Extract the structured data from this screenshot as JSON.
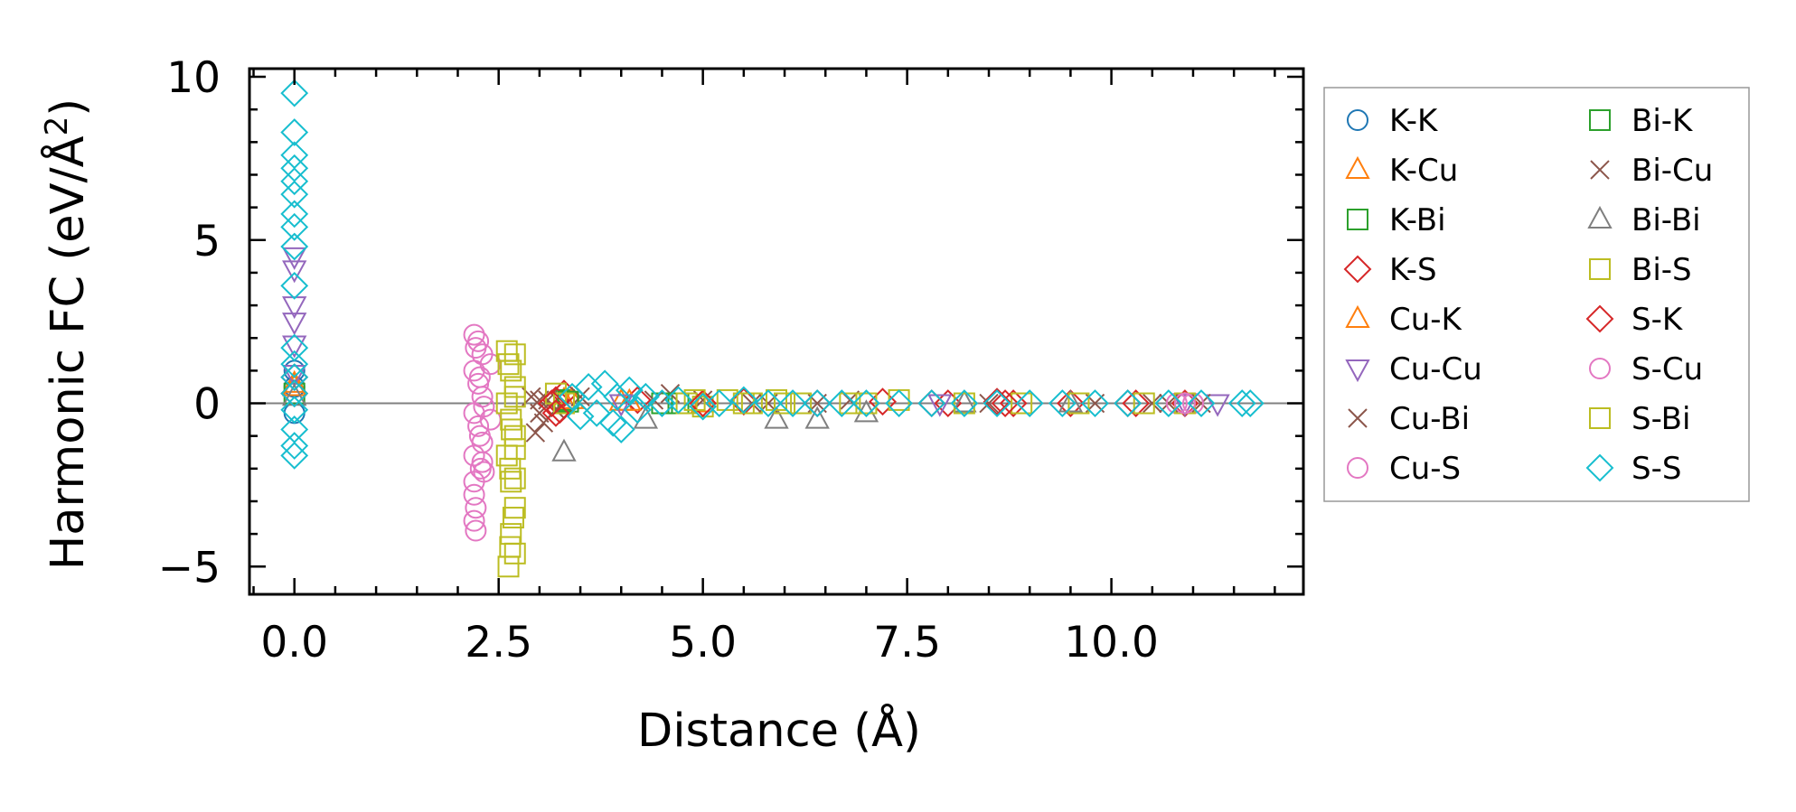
{
  "chart_data": {
    "type": "scatter",
    "title": "",
    "xlabel": "Distance (Å)",
    "ylabel_main": "Harmonic FC (eV/Å",
    "ylabel_sup": "2",
    "ylabel_tail": ")",
    "xlim": [
      -0.55,
      12.35
    ],
    "ylim": [
      -5.85,
      10.25
    ],
    "x_ticks": [
      0.0,
      2.5,
      5.0,
      7.5,
      10.0
    ],
    "x_tick_labels": [
      "0.0",
      "2.5",
      "5.0",
      "7.5",
      "10.0"
    ],
    "y_ticks": [
      -5,
      0,
      5,
      10
    ],
    "y_tick_labels": [
      "−5",
      "0",
      "5",
      "10"
    ],
    "zero_line": 0,
    "legend_position": "outside-right",
    "series": [
      {
        "name": "K-K",
        "marker": "circle",
        "color": "#1f77b4",
        "points": [
          [
            0.0,
            1.0
          ],
          [
            0.0,
            0.5
          ],
          [
            0.0,
            -0.3
          ]
        ]
      },
      {
        "name": "K-Cu",
        "marker": "triangle-up",
        "color": "#ff7f0e",
        "points": [
          [
            0.0,
            0.6
          ],
          [
            3.3,
            0.1
          ],
          [
            4.0,
            0.05
          ],
          [
            5.0,
            0.0
          ]
        ]
      },
      {
        "name": "K-Bi",
        "marker": "square",
        "color": "#2ca02c",
        "points": [
          [
            0.0,
            0.3
          ],
          [
            3.3,
            0.1
          ],
          [
            4.5,
            0.0
          ]
        ]
      },
      {
        "name": "K-S",
        "marker": "diamond",
        "color": "#d62728",
        "points": [
          [
            0.0,
            0.8
          ],
          [
            3.2,
            0.1
          ],
          [
            3.25,
            -0.2
          ],
          [
            3.3,
            0.3
          ],
          [
            4.2,
            0.1
          ],
          [
            5.5,
            0.05
          ],
          [
            6.4,
            0.0
          ],
          [
            7.2,
            0.05
          ],
          [
            8.0,
            0.0
          ],
          [
            8.6,
            0.05
          ],
          [
            8.8,
            0.0
          ],
          [
            9.5,
            0.0
          ],
          [
            10.3,
            0.0
          ],
          [
            10.9,
            0.0
          ]
        ]
      },
      {
        "name": "Cu-K",
        "marker": "triangle-up",
        "color": "#ff7f0e",
        "points": [
          [
            0.0,
            0.5
          ],
          [
            3.4,
            0.1
          ],
          [
            4.1,
            0.05
          ]
        ]
      },
      {
        "name": "Cu-Cu",
        "marker": "triangle-down",
        "color": "#9467bd",
        "points": [
          [
            0.0,
            4.1
          ],
          [
            0.0,
            4.5
          ],
          [
            0.0,
            3.0
          ],
          [
            0.0,
            2.5
          ],
          [
            0.0,
            1.8
          ],
          [
            0.0,
            0.9
          ],
          [
            4.0,
            0.0
          ],
          [
            7.9,
            0.0
          ],
          [
            10.9,
            0.0
          ],
          [
            11.3,
            0.0
          ]
        ]
      },
      {
        "name": "Cu-Bi",
        "marker": "x",
        "color": "#8c564b",
        "points": [
          [
            2.9,
            0.2
          ],
          [
            3.0,
            -0.3
          ],
          [
            2.95,
            -0.9
          ],
          [
            3.05,
            -0.6
          ],
          [
            3.1,
            0.1
          ],
          [
            3.5,
            0.2
          ],
          [
            4.6,
            0.3
          ],
          [
            5.0,
            0.1
          ],
          [
            5.8,
            0.0
          ],
          [
            6.8,
            0.1
          ],
          [
            8.5,
            0.0
          ],
          [
            9.8,
            0.0
          ],
          [
            10.7,
            0.0
          ],
          [
            11.1,
            0.0
          ]
        ]
      },
      {
        "name": "Cu-S",
        "marker": "circle",
        "color": "#e377c2",
        "points": [
          [
            2.2,
            2.1
          ],
          [
            2.25,
            1.9
          ],
          [
            2.3,
            1.5
          ],
          [
            2.2,
            1.0
          ],
          [
            2.25,
            0.6
          ],
          [
            2.3,
            0.2
          ],
          [
            2.2,
            -0.3
          ],
          [
            2.25,
            -0.7
          ],
          [
            2.3,
            -1.2
          ],
          [
            2.2,
            -1.6
          ],
          [
            2.28,
            -2.0
          ],
          [
            2.32,
            -2.1
          ],
          [
            2.2,
            -2.8
          ],
          [
            2.22,
            -3.2
          ],
          [
            2.2,
            -3.6
          ],
          [
            2.22,
            -3.9
          ],
          [
            2.4,
            1.2
          ],
          [
            2.4,
            -0.5
          ],
          [
            10.8,
            0.0
          ],
          [
            11.0,
            0.0
          ]
        ]
      },
      {
        "name": "Bi-K",
        "marker": "square",
        "color": "#2ca02c",
        "points": [
          [
            3.35,
            0.05
          ],
          [
            4.7,
            0.0
          ]
        ]
      },
      {
        "name": "Bi-Cu",
        "marker": "x",
        "color": "#8c564b",
        "points": [
          [
            3.0,
            0.1
          ],
          [
            3.2,
            -0.2
          ],
          [
            4.4,
            0.1
          ],
          [
            5.6,
            0.0
          ],
          [
            6.4,
            0.0
          ],
          [
            10.5,
            0.0
          ]
        ]
      },
      {
        "name": "Bi-Bi",
        "marker": "triangle-up",
        "color": "#7f7f7f",
        "points": [
          [
            0.0,
            0.2
          ],
          [
            3.3,
            -1.5
          ],
          [
            4.3,
            -0.5
          ],
          [
            5.9,
            -0.5
          ],
          [
            6.4,
            -0.5
          ],
          [
            7.0,
            -0.3
          ],
          [
            8.2,
            0.0
          ],
          [
            9.5,
            0.0
          ]
        ]
      },
      {
        "name": "Bi-S",
        "marker": "square",
        "color": "#bcbd22",
        "points": [
          [
            2.6,
            1.6
          ],
          [
            2.7,
            1.5
          ],
          [
            2.65,
            1.0
          ],
          [
            2.7,
            0.5
          ],
          [
            2.6,
            0.0
          ],
          [
            2.65,
            -0.5
          ],
          [
            2.7,
            -1.0
          ],
          [
            2.6,
            -1.6
          ],
          [
            2.7,
            -2.3
          ],
          [
            2.65,
            -2.4
          ],
          [
            2.68,
            -3.5
          ],
          [
            2.65,
            -4.0
          ],
          [
            2.7,
            -4.6
          ],
          [
            2.62,
            -5.0
          ],
          [
            3.2,
            0.3
          ],
          [
            3.3,
            0.0
          ],
          [
            4.8,
            0.0
          ],
          [
            5.0,
            -0.1
          ],
          [
            5.3,
            0.1
          ],
          [
            5.6,
            0.0
          ],
          [
            5.9,
            0.1
          ],
          [
            6.2,
            0.0
          ],
          [
            6.8,
            0.0
          ],
          [
            7.4,
            0.1
          ],
          [
            8.2,
            0.0
          ],
          [
            8.9,
            0.0
          ],
          [
            9.6,
            0.0
          ],
          [
            10.4,
            0.0
          ],
          [
            10.9,
            0.0
          ]
        ]
      },
      {
        "name": "S-K",
        "marker": "diamond",
        "color": "#d62728",
        "points": [
          [
            0.0,
            0.3
          ],
          [
            3.15,
            0.0
          ],
          [
            3.2,
            -0.3
          ],
          [
            5.0,
            0.0
          ],
          [
            7.8,
            0.0
          ],
          [
            8.7,
            0.0
          ],
          [
            10.2,
            0.0
          ]
        ]
      },
      {
        "name": "S-Cu",
        "marker": "circle",
        "color": "#e377c2",
        "points": [
          [
            2.22,
            1.7
          ],
          [
            2.27,
            0.8
          ],
          [
            2.32,
            -0.1
          ],
          [
            2.27,
            -1.0
          ],
          [
            2.3,
            -1.8
          ],
          [
            2.2,
            -2.4
          ],
          [
            10.9,
            0.0
          ]
        ]
      },
      {
        "name": "S-Bi",
        "marker": "square",
        "color": "#bcbd22",
        "points": [
          [
            2.62,
            1.2
          ],
          [
            2.7,
            0.2
          ],
          [
            2.66,
            -0.8
          ],
          [
            2.7,
            -1.4
          ],
          [
            2.64,
            -2.0
          ],
          [
            2.7,
            -3.2
          ],
          [
            2.64,
            -4.4
          ],
          [
            4.9,
            0.1
          ],
          [
            5.5,
            0.0
          ],
          [
            6.0,
            0.0
          ],
          [
            7.0,
            0.0
          ]
        ]
      },
      {
        "name": "S-S",
        "marker": "diamond",
        "color": "#17becf",
        "points": [
          [
            0.0,
            9.5
          ],
          [
            0.0,
            8.3
          ],
          [
            0.0,
            7.6
          ],
          [
            0.0,
            7.2
          ],
          [
            0.0,
            6.8
          ],
          [
            0.0,
            6.4
          ],
          [
            0.0,
            5.8
          ],
          [
            0.0,
            5.4
          ],
          [
            0.0,
            4.8
          ],
          [
            0.0,
            3.6
          ],
          [
            0.0,
            1.7
          ],
          [
            0.0,
            1.2
          ],
          [
            0.0,
            0.8
          ],
          [
            0.0,
            0.3
          ],
          [
            0.0,
            -0.2
          ],
          [
            0.0,
            -0.8
          ],
          [
            0.0,
            -1.3
          ],
          [
            0.0,
            -1.6
          ],
          [
            3.4,
            0.2
          ],
          [
            3.5,
            -0.4
          ],
          [
            3.6,
            0.5
          ],
          [
            3.7,
            -0.3
          ],
          [
            3.8,
            0.6
          ],
          [
            3.9,
            -0.6
          ],
          [
            3.95,
            0.2
          ],
          [
            4.0,
            -0.8
          ],
          [
            4.1,
            0.4
          ],
          [
            4.2,
            -0.2
          ],
          [
            4.3,
            0.2
          ],
          [
            4.5,
            0.0
          ],
          [
            4.7,
            0.1
          ],
          [
            5.0,
            -0.1
          ],
          [
            5.2,
            0.0
          ],
          [
            5.5,
            0.1
          ],
          [
            5.8,
            0.0
          ],
          [
            6.1,
            0.0
          ],
          [
            6.4,
            0.0
          ],
          [
            6.7,
            0.0
          ],
          [
            7.0,
            0.0
          ],
          [
            7.4,
            0.0
          ],
          [
            7.8,
            0.0
          ],
          [
            8.2,
            0.0
          ],
          [
            8.6,
            0.0
          ],
          [
            9.0,
            0.0
          ],
          [
            9.4,
            0.0
          ],
          [
            9.8,
            0.0
          ],
          [
            10.2,
            0.0
          ],
          [
            10.7,
            0.0
          ],
          [
            11.1,
            0.0
          ],
          [
            11.6,
            0.0
          ],
          [
            11.7,
            0.0
          ]
        ]
      }
    ]
  }
}
